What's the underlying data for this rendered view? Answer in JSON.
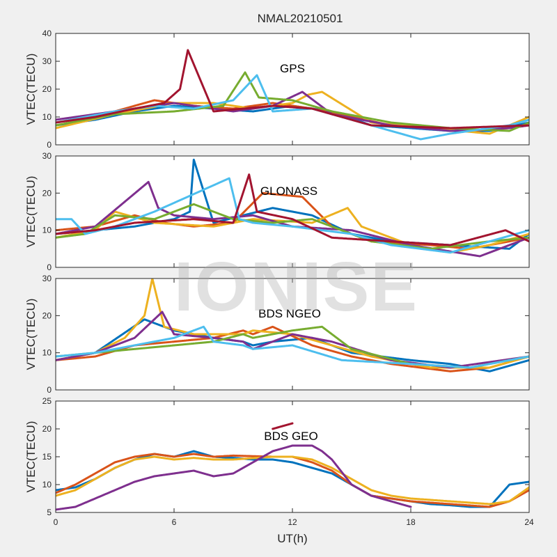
{
  "figure_title": "NMAL20210501",
  "watermark": "IONISE",
  "colors": [
    "#0072BD",
    "#D95319",
    "#EDB120",
    "#7E2F8E",
    "#77AC30",
    "#4DBEEE",
    "#A2142F"
  ],
  "chart_data": [
    {
      "type": "scatter",
      "label": "GPS",
      "xlabel": "",
      "ylabel": "VTEC(TECU)",
      "xlim": [
        0,
        24
      ],
      "ylim": [
        0,
        40
      ],
      "xticks": [],
      "yticks": [
        0,
        10,
        20,
        30,
        40
      ],
      "series": [
        {
          "color": "#0072BD",
          "x": [
            0,
            2,
            4,
            6,
            8,
            10,
            12,
            14,
            16,
            18,
            20,
            22,
            24
          ],
          "y": [
            7,
            9,
            12,
            14,
            13,
            12,
            14,
            12,
            7,
            6,
            5,
            5,
            8
          ]
        },
        {
          "color": "#D95319",
          "x": [
            0,
            2,
            4,
            5,
            7,
            9,
            11,
            13,
            15,
            17,
            19,
            21,
            23,
            24
          ],
          "y": [
            8,
            10,
            14,
            16,
            14,
            13,
            15,
            13,
            10,
            7,
            6,
            5,
            6,
            7
          ]
        },
        {
          "color": "#EDB120",
          "x": [
            0,
            3,
            6,
            8,
            10,
            12,
            12.8,
            13.5,
            16,
            19,
            22,
            24
          ],
          "y": [
            6,
            11,
            15,
            15,
            13,
            15,
            18,
            19,
            8,
            6,
            4,
            10
          ]
        },
        {
          "color": "#7E2F8E",
          "x": [
            0,
            3,
            6,
            9,
            11,
            12.5,
            14,
            17,
            20,
            23,
            24
          ],
          "y": [
            9,
            12,
            15,
            12,
            14,
            19,
            11,
            7,
            5,
            6,
            7
          ]
        },
        {
          "color": "#77AC30",
          "x": [
            0,
            3,
            6,
            8.5,
            9.6,
            10.3,
            12,
            14,
            17,
            20,
            23,
            24
          ],
          "y": [
            7,
            11,
            12,
            14,
            26,
            17,
            16,
            12,
            8,
            6,
            5,
            8
          ]
        },
        {
          "color": "#4DBEEE",
          "x": [
            0,
            3,
            5,
            7,
            9,
            10.2,
            11,
            13,
            16,
            18.5,
            20,
            23,
            24
          ],
          "y": [
            8,
            12,
            14,
            13,
            16,
            25,
            12,
            13,
            7,
            2,
            4,
            7,
            9
          ]
        },
        {
          "color": "#A2142F",
          "x": [
            0,
            2,
            4,
            5.5,
            6.3,
            6.7,
            8,
            11,
            13,
            16,
            20,
            24
          ],
          "y": [
            8,
            10,
            13,
            15,
            20,
            34,
            12,
            14,
            13,
            7,
            6,
            7
          ]
        }
      ]
    },
    {
      "type": "scatter",
      "label": "GLONASS",
      "xlabel": "",
      "ylabel": "VTEC(TECU)",
      "xlim": [
        0,
        24
      ],
      "ylim": [
        0,
        30
      ],
      "xticks": [],
      "yticks": [
        0,
        10,
        20,
        30
      ],
      "series": [
        {
          "color": "#0072BD",
          "x": [
            0,
            2,
            4,
            6,
            6.8,
            7,
            8,
            11,
            13,
            15,
            17,
            20,
            23,
            24
          ],
          "y": [
            9,
            10,
            11,
            13,
            15,
            29,
            12,
            16,
            14,
            9,
            7,
            6,
            5,
            9
          ]
        },
        {
          "color": "#D95319",
          "x": [
            0,
            2,
            4,
            5.5,
            7,
            9,
            10.5,
            12.5,
            14,
            16,
            19,
            21,
            24
          ],
          "y": [
            10,
            11,
            14,
            12,
            11,
            12,
            20,
            19,
            11,
            7,
            6,
            5,
            8
          ]
        },
        {
          "color": "#EDB120",
          "x": [
            0,
            2,
            3,
            5,
            8,
            10,
            13,
            14.8,
            15.5,
            18,
            20,
            22,
            24
          ],
          "y": [
            8,
            10,
            15,
            12,
            11,
            13,
            12,
            16,
            11,
            6,
            4,
            6,
            9
          ]
        },
        {
          "color": "#7E2F8E",
          "x": [
            0,
            2,
            4.7,
            5.2,
            6,
            8,
            10,
            12,
            15,
            18,
            21.5,
            23,
            24
          ],
          "y": [
            9,
            11,
            23,
            16,
            14,
            13,
            14,
            11,
            10,
            6,
            3,
            6,
            8
          ]
        },
        {
          "color": "#77AC30",
          "x": [
            0,
            1.5,
            3,
            5,
            7,
            9,
            11,
            13,
            16,
            19,
            22,
            24
          ],
          "y": [
            8,
            9,
            14,
            13,
            17,
            13,
            12,
            13,
            7,
            5,
            7,
            8
          ]
        },
        {
          "color": "#4DBEEE",
          "x": [
            0,
            0.8,
            1.5,
            3,
            5,
            8.8,
            9.3,
            10,
            12,
            15,
            17,
            20,
            24
          ],
          "y": [
            13,
            13,
            9,
            11,
            15,
            24,
            13,
            12,
            11,
            9,
            6,
            4,
            10
          ]
        },
        {
          "color": "#A2142F",
          "x": [
            0,
            2,
            4,
            7,
            9,
            9.8,
            10.2,
            12,
            14,
            17,
            20,
            22.8,
            24
          ],
          "y": [
            9,
            10,
            12,
            13,
            12,
            25,
            15,
            13,
            8,
            7,
            6,
            10,
            7
          ]
        }
      ]
    },
    {
      "type": "scatter",
      "label": "BDS NGEO",
      "xlabel": "",
      "ylabel": "VTEC(TECU)",
      "xlim": [
        0,
        24
      ],
      "ylim": [
        0,
        30
      ],
      "xticks": [],
      "yticks": [
        0,
        10,
        20,
        30
      ],
      "series": [
        {
          "color": "#0072BD",
          "x": [
            0,
            2,
            4.5,
            6,
            8,
            9.5,
            10,
            11,
            13,
            15,
            18,
            20,
            22,
            24
          ],
          "y": [
            8,
            10,
            19,
            16,
            14,
            13,
            12,
            13,
            14,
            10,
            8,
            7,
            5,
            8
          ]
        },
        {
          "color": "#D95319",
          "x": [
            0,
            2,
            4,
            6,
            8,
            9.5,
            10,
            11,
            13,
            15,
            17,
            20,
            22,
            24
          ],
          "y": [
            8,
            9,
            12,
            13,
            14,
            16,
            15,
            17,
            12,
            9,
            7,
            5,
            6,
            9
          ]
        },
        {
          "color": "#EDB120",
          "x": [
            0,
            2,
            3.5,
            4.5,
            4.9,
            5.5,
            7,
            9.5,
            10,
            12,
            14,
            16,
            19,
            22,
            24
          ],
          "y": [
            8,
            10,
            14,
            20,
            30,
            17,
            15,
            15,
            16,
            15,
            12,
            9,
            6,
            6,
            9
          ]
        },
        {
          "color": "#7E2F8E",
          "x": [
            0,
            2,
            4,
            5.4,
            6,
            8,
            9.5,
            10,
            12,
            14,
            17,
            20,
            24
          ],
          "y": [
            8,
            10,
            14,
            21,
            15,
            14,
            13,
            11,
            15,
            13,
            8,
            6,
            9
          ]
        },
        {
          "color": "#77AC30",
          "x": [
            0,
            2,
            4,
            6,
            8,
            9.5,
            10,
            12,
            13.5,
            15,
            18,
            21,
            24
          ],
          "y": [
            9,
            10,
            11,
            12,
            13,
            15,
            14,
            16,
            17,
            11,
            7,
            6,
            9
          ]
        },
        {
          "color": "#4DBEEE",
          "x": [
            0,
            2,
            4,
            6,
            7.5,
            8,
            9.5,
            10,
            12,
            14.5,
            18,
            21,
            24
          ],
          "y": [
            9,
            10,
            12,
            14,
            17,
            13,
            12,
            11,
            12,
            8,
            7,
            6,
            9
          ]
        }
      ]
    },
    {
      "type": "scatter",
      "label": "BDS GEO",
      "xlabel": "UT(h)",
      "ylabel": "VTEC(TECU)",
      "xlim": [
        0,
        24
      ],
      "ylim": [
        5,
        25
      ],
      "xticks": [
        0,
        6,
        12,
        18,
        24
      ],
      "yticks": [
        5,
        10,
        15,
        20,
        25
      ],
      "series": [
        {
          "color": "#0072BD",
          "x": [
            0,
            1,
            2,
            3,
            4,
            5,
            6,
            7,
            8,
            9,
            10,
            11,
            12,
            13,
            14,
            15,
            16,
            17,
            18,
            19,
            20,
            21,
            22,
            23,
            24
          ],
          "y": [
            9,
            9.5,
            11,
            13,
            14.5,
            15.5,
            15,
            16,
            15,
            14.8,
            14.5,
            14.5,
            14,
            13,
            12,
            10,
            8,
            7.5,
            7,
            6.5,
            6.3,
            6,
            6,
            10,
            10.5
          ]
        },
        {
          "color": "#D95319",
          "x": [
            0,
            1,
            2,
            3,
            4,
            5,
            6,
            7,
            8,
            9,
            11,
            12,
            13,
            14,
            15,
            16,
            17,
            18,
            20,
            22,
            23,
            24
          ],
          "y": [
            8.5,
            10,
            12,
            14,
            15,
            15.5,
            15,
            15.5,
            15,
            15.2,
            15,
            15,
            14,
            12.5,
            10,
            8,
            7.5,
            7,
            6.5,
            6,
            7,
            9
          ]
        },
        {
          "color": "#EDB120",
          "x": [
            0,
            1,
            2,
            3,
            4,
            5,
            6,
            7,
            8,
            9,
            11,
            12,
            13,
            14,
            15,
            16,
            17,
            18,
            20,
            22,
            23,
            24
          ],
          "y": [
            8,
            9,
            11,
            13,
            14.5,
            15,
            14.5,
            14.8,
            14.5,
            14.5,
            15,
            15,
            14.5,
            13,
            11,
            9,
            8,
            7.5,
            7,
            6.5,
            7,
            9.5
          ]
        },
        {
          "color": "#7E2F8E",
          "x": [
            0,
            1,
            2,
            3,
            4,
            5,
            6,
            7,
            8,
            9,
            11,
            12,
            13,
            13.5,
            14,
            15,
            16,
            17,
            18
          ],
          "y": [
            5.5,
            6,
            7.5,
            9,
            10.5,
            11.5,
            12,
            12.5,
            11.5,
            12,
            16,
            17,
            17,
            16,
            14.5,
            10,
            8,
            7,
            6
          ]
        },
        {
          "color": "#A2142F",
          "x": [
            11,
            11.5,
            12
          ],
          "y": [
            20,
            20.5,
            21
          ]
        }
      ]
    }
  ]
}
